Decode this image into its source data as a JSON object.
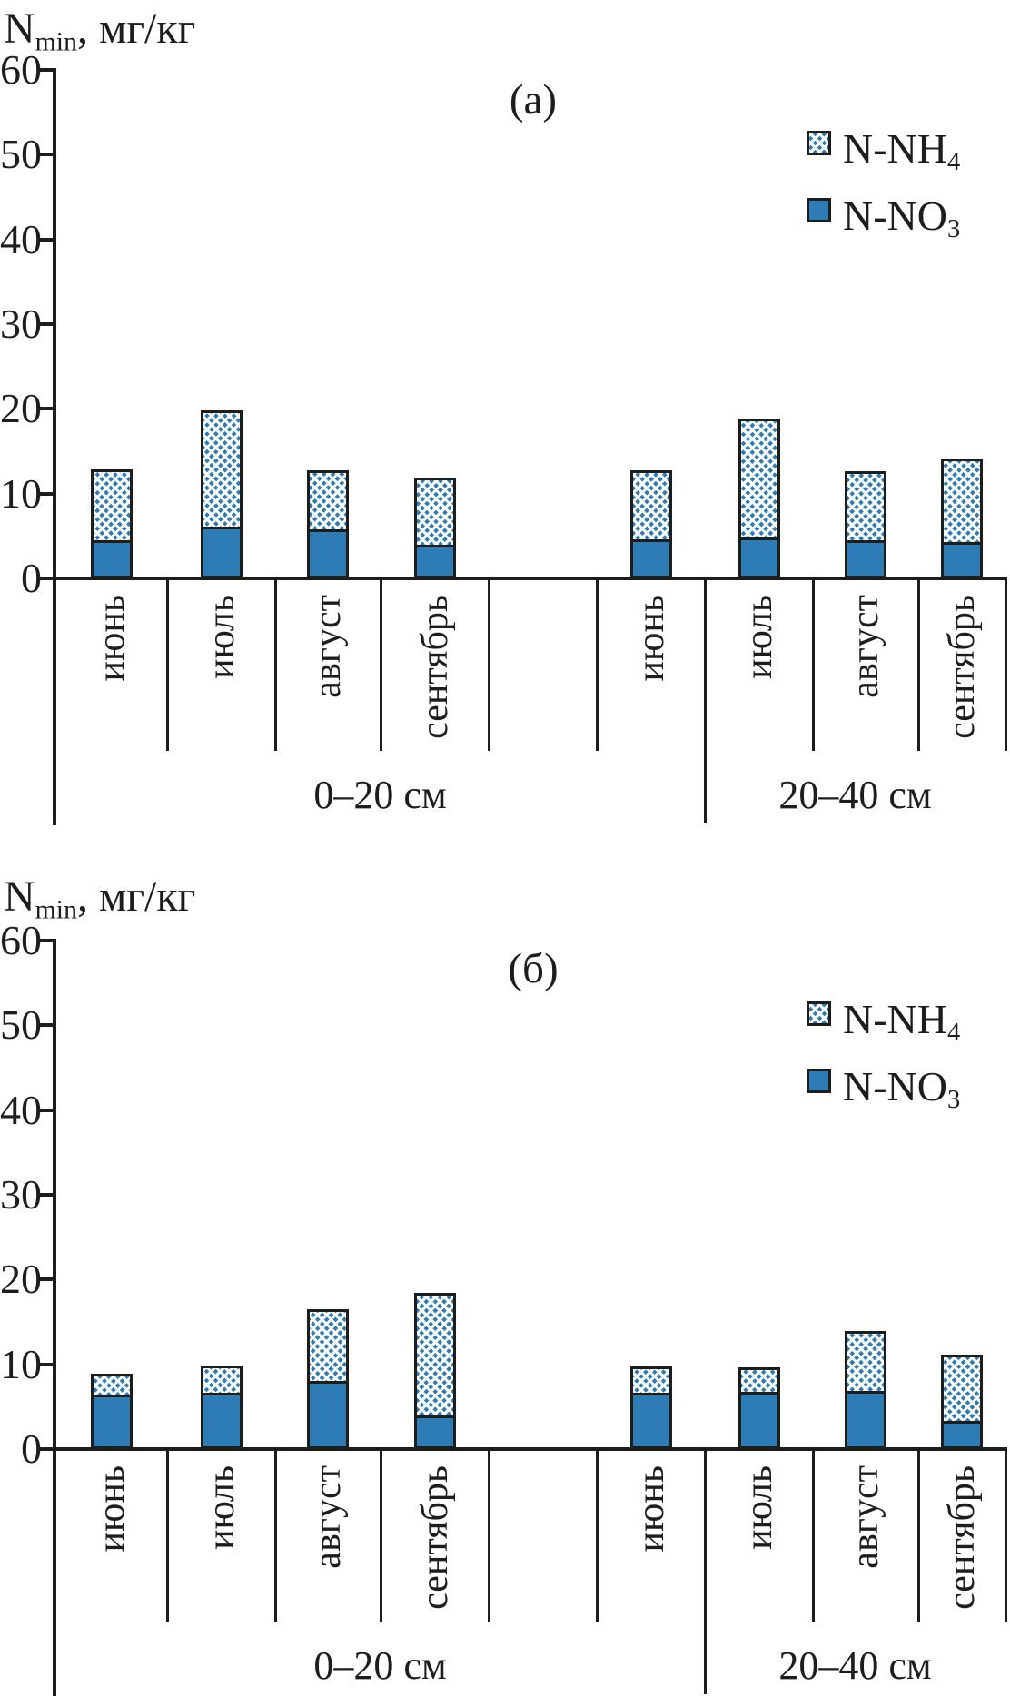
{
  "figure": {
    "y_axis_title": {
      "pre": "N",
      "sub": "min",
      "post": ", мг/кг"
    },
    "legend": [
      {
        "name": "N-NH4",
        "pre": "N-NH",
        "sub": "4",
        "style": "hatched"
      },
      {
        "name": "N-NO3",
        "pre": "N-NO",
        "sub": "3",
        "style": "solid"
      }
    ],
    "colors": {
      "bar_blue": "#2e7cb5",
      "outline": "#1d1d1b",
      "hatch_white": "#fcfdfe"
    }
  },
  "chart_data": [
    {
      "type": "bar",
      "stacked": true,
      "panel_label": "(а)",
      "ylabel": "Nmin, мг/кг",
      "ylim": [
        0,
        60
      ],
      "yticks": [
        0,
        10,
        20,
        30,
        40,
        50,
        60
      ],
      "grid": false,
      "legend_position": "upper right",
      "groups": [
        {
          "label": "0–20 см",
          "categories": [
            "июнь",
            "июль",
            "август",
            "сентябрь"
          ],
          "series": [
            {
              "name": "N-NO3",
              "values": [
                4.2,
                5.8,
                5.5,
                3.6
              ]
            },
            {
              "name": "N-NH4",
              "values": [
                8.7,
                14.0,
                7.3,
                8.3
              ]
            }
          ],
          "totals": [
            12.9,
            19.8,
            12.8,
            11.9
          ]
        },
        {
          "label": "20–40 см",
          "categories": [
            "июнь",
            "июль",
            "август",
            "сентябрь"
          ],
          "series": [
            {
              "name": "N-NO3",
              "values": [
                4.3,
                4.5,
                4.2,
                4.0
              ]
            },
            {
              "name": "N-NH4",
              "values": [
                8.5,
                14.4,
                8.4,
                10.1
              ]
            }
          ],
          "totals": [
            12.8,
            18.9,
            12.6,
            14.1
          ]
        }
      ]
    },
    {
      "type": "bar",
      "stacked": true,
      "panel_label": "(б)",
      "ylabel": "Nmin, мг/кг",
      "ylim": [
        0,
        60
      ],
      "yticks": [
        0,
        10,
        20,
        30,
        40,
        50,
        60
      ],
      "grid": false,
      "legend_position": "upper right",
      "groups": [
        {
          "label": "0–20 см",
          "categories": [
            "июнь",
            "июль",
            "август",
            "сентябрь"
          ],
          "series": [
            {
              "name": "N-NO3",
              "values": [
                6.1,
                6.3,
                7.7,
                3.6
              ]
            },
            {
              "name": "N-NH4",
              "values": [
                2.8,
                3.6,
                8.8,
                14.8
              ]
            }
          ],
          "totals": [
            8.9,
            9.9,
            16.5,
            18.4
          ]
        },
        {
          "label": "20–40 см",
          "categories": [
            "июнь",
            "июль",
            "август",
            "сентябрь"
          ],
          "series": [
            {
              "name": "N-NO3",
              "values": [
                6.3,
                6.4,
                6.5,
                3.0
              ]
            },
            {
              "name": "N-NH4",
              "values": [
                3.5,
                3.2,
                7.4,
                8.1
              ]
            }
          ],
          "totals": [
            9.8,
            9.6,
            13.9,
            11.1
          ]
        }
      ]
    }
  ]
}
